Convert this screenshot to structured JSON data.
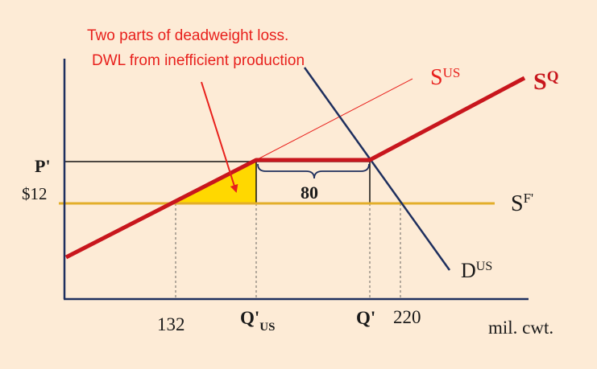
{
  "colors": {
    "background": "#fdebd6",
    "annotation": "#e8201c",
    "supply_quota": "#c8161d",
    "domestic_supply": "#e8201c",
    "world_supply": "#e3ae2a",
    "demand": "#1e2f5e",
    "dwl_fill": "#ffd800",
    "axis": "#1e2f5e",
    "text": "#1a1a1a"
  },
  "annotations": {
    "line1": "Two parts of deadweight loss.",
    "line2": "DWL from inefficient production"
  },
  "curves": {
    "s_quota": {
      "main": "S",
      "sup": "Q"
    },
    "s_us": {
      "main": "S",
      "sup": "US"
    },
    "s_world": {
      "main": "S",
      "sup": "F'"
    },
    "d_us": {
      "main": "D",
      "sup": "US"
    }
  },
  "axes": {
    "y_labels": {
      "p_prime": "P'",
      "price_12": "$12"
    },
    "x_labels": {
      "q132": "132",
      "q_us_prime": "Q'",
      "q_us_sub": "US",
      "q_prime": "Q'",
      "q220": "220",
      "units": "mil. cwt."
    }
  },
  "gap": {
    "label": "80"
  }
}
